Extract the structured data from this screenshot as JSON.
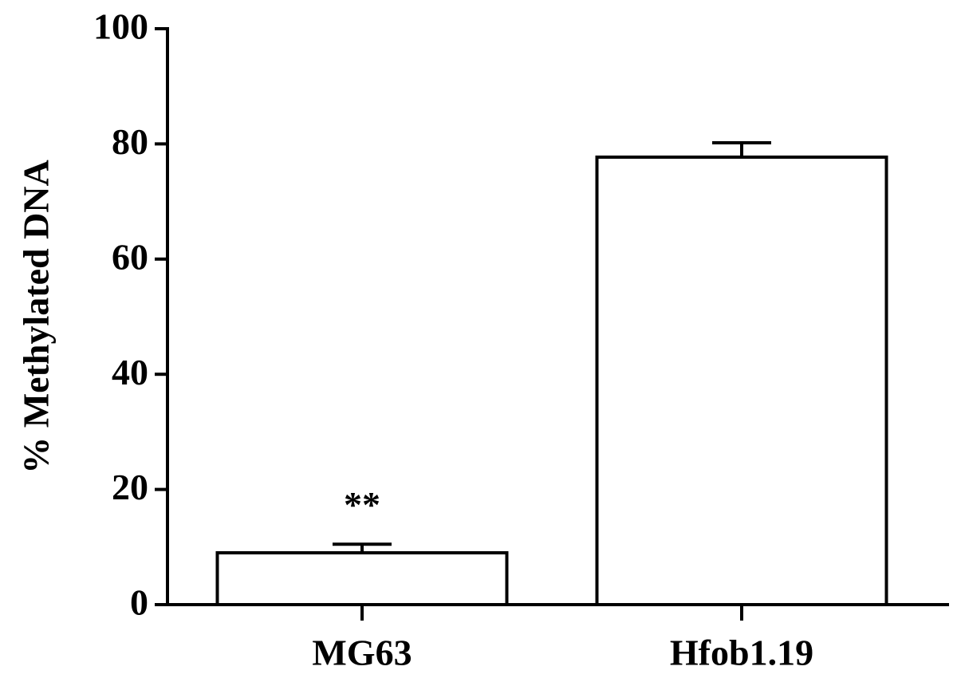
{
  "chart_data": {
    "type": "bar",
    "ylabel": "% Methylated DNA",
    "categories": [
      "MG63",
      "Hfob1.19"
    ],
    "values": [
      9.0,
      77.7
    ],
    "errors": [
      1.5,
      2.5
    ],
    "significance": [
      "**",
      null
    ],
    "color": "#ffffff",
    "ylim": [
      0,
      100
    ],
    "yticks": [
      0,
      20,
      40,
      60,
      80,
      100
    ],
    "grid": false
  }
}
